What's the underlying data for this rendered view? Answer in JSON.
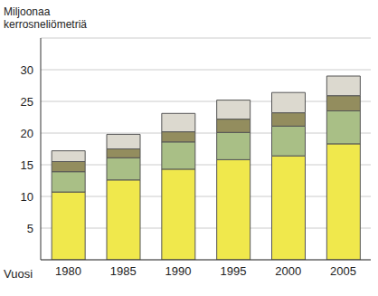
{
  "chart_data": {
    "type": "bar",
    "y_label": "Miljoonaa kerrosneliömetriä",
    "x_label": "Vuosi",
    "categories": [
      "1980",
      "1985",
      "1990",
      "1995",
      "2000",
      "2005"
    ],
    "series": [
      {
        "color": "#f0e84c",
        "values": [
          10.7,
          12.6,
          14.3,
          15.8,
          16.4,
          18.3
        ]
      },
      {
        "color": "#a9bf86",
        "values": [
          3.2,
          3.5,
          4.3,
          4.3,
          4.7,
          5.2
        ]
      },
      {
        "color": "#938d5e",
        "values": [
          1.6,
          1.4,
          1.6,
          2.1,
          2.1,
          2.4
        ]
      },
      {
        "color": "#dcd9cf",
        "values": [
          1.7,
          2.3,
          2.9,
          3.0,
          3.2,
          3.1
        ]
      }
    ],
    "stacked": true,
    "ylim": [
      0,
      35
    ],
    "yticks": [
      5,
      10,
      15,
      20,
      25,
      30
    ],
    "grid": true
  }
}
